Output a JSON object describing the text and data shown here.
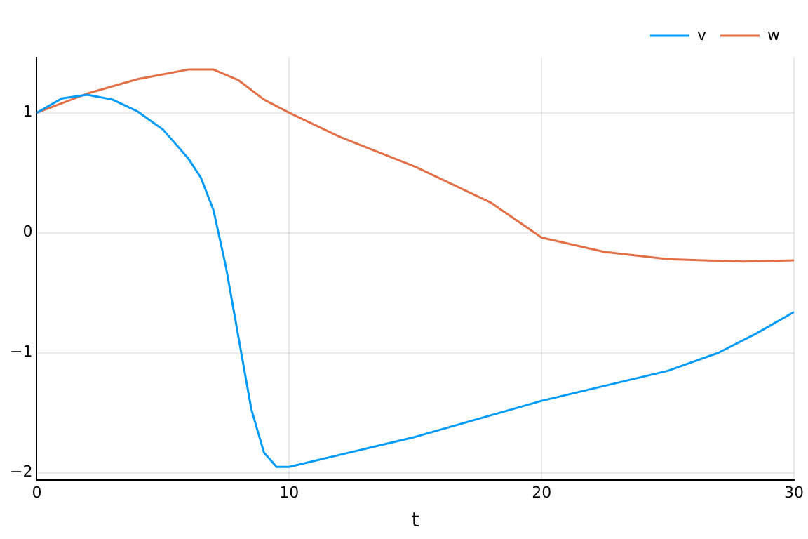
{
  "chart_data": {
    "type": "line",
    "xlabel": "t",
    "xlim": [
      0,
      30
    ],
    "xticks": [
      0,
      10,
      20,
      30
    ],
    "ylim": [
      -2.06,
      1.46
    ],
    "yticks": [
      -2,
      -1,
      0,
      1
    ],
    "grid": true,
    "legend": "top right",
    "series": [
      {
        "name": "v",
        "color": "#009af9",
        "x": [
          0,
          1,
          2,
          3,
          4,
          5,
          6,
          6.5,
          7,
          7.5,
          8,
          8.5,
          9,
          9.5,
          10,
          12,
          15,
          20,
          25,
          27,
          28.5,
          30
        ],
        "values": [
          1,
          1.12,
          1.15,
          1.11,
          1.01,
          0.86,
          0.62,
          0.46,
          0.19,
          -0.29,
          -0.88,
          -1.47,
          -1.83,
          -1.95,
          -1.95,
          -1.85,
          -1.7,
          -1.4,
          -1.15,
          -1.0,
          -0.84,
          -0.66
        ]
      },
      {
        "name": "w",
        "color": "#e26f46",
        "x": [
          0,
          2,
          4,
          6,
          7,
          8,
          9,
          10,
          12,
          15,
          18,
          20,
          22.5,
          25,
          28,
          30
        ],
        "values": [
          1,
          1.16,
          1.28,
          1.36,
          1.36,
          1.27,
          1.11,
          1.0,
          0.8,
          0.55,
          0.25,
          -0.04,
          -0.16,
          -0.22,
          -0.24,
          -0.23
        ]
      }
    ]
  }
}
